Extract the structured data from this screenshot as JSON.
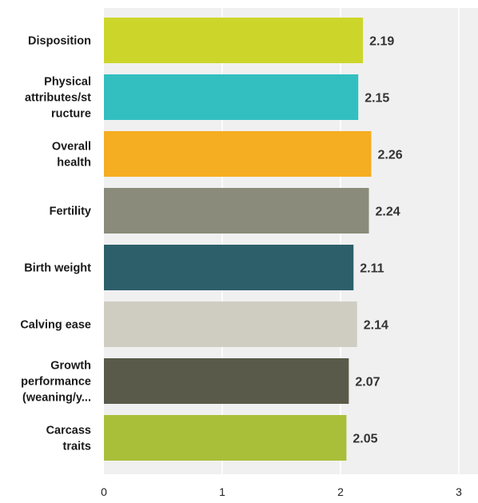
{
  "chart_data": {
    "type": "bar",
    "orientation": "horizontal",
    "title": "",
    "xlabel": "",
    "ylabel": "",
    "categories": [
      "Disposition",
      "Physical attributes/structure",
      "Overall health",
      "Fertility",
      "Birth weight",
      "Calving ease",
      "Growth performance (weaning/y...",
      "Carcass traits"
    ],
    "category_label_lines": [
      [
        "Disposition"
      ],
      [
        "Physical",
        "attributes/st",
        "ructure"
      ],
      [
        "Overall",
        "health"
      ],
      [
        "Fertility"
      ],
      [
        "Birth weight"
      ],
      [
        "Calving ease"
      ],
      [
        "Growth",
        "performance",
        "(weaning/y..."
      ],
      [
        "Carcass",
        "traits"
      ]
    ],
    "values": [
      2.19,
      2.15,
      2.26,
      2.24,
      2.11,
      2.14,
      2.07,
      2.05
    ],
    "value_labels": [
      "2.19",
      "2.15",
      "2.26",
      "2.24",
      "2.11",
      "2.14",
      "2.07",
      "2.05"
    ],
    "colors": [
      "#ccd62a",
      "#33bfc0",
      "#f5ad21",
      "#8a8b7a",
      "#2d5f6b",
      "#cfcdc2",
      "#5a5a4a",
      "#a9bf3a"
    ],
    "xlim": [
      0,
      3
    ],
    "xticks": [
      0,
      1,
      2,
      3
    ],
    "xtick_labels": [
      "0",
      "1",
      "2",
      "3"
    ],
    "grid": true,
    "legend": "none",
    "plot_background": "#f0f0f0",
    "gridline_color": "#ffffff"
  }
}
